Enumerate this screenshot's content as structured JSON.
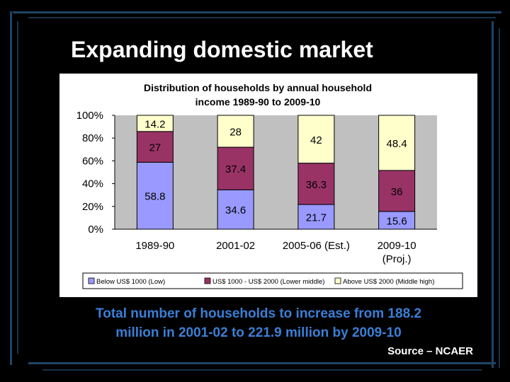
{
  "slide": {
    "title": "Expanding domestic market",
    "caption_line1": "Total number of households to increase from 188.2",
    "caption_line2": "million in 2001-02 to 221.9 million by 2009-10",
    "source": "Source – NCAER"
  },
  "colors": {
    "background": "#000000",
    "title": "#ffffff",
    "caption": "#3a7fd6",
    "deco_line": "#1f4566",
    "plot_area": "#c0c0c0",
    "low": "#9999ff",
    "lower_middle": "#993366",
    "middle_high": "#ffffcc"
  },
  "chart_data": {
    "type": "bar",
    "stacked": true,
    "percent_stacked": true,
    "title": "Distribution of households by annual household income 1989-90 to 2009-10",
    "title_lines": [
      "Distribution of households by annual household",
      "income 1989-90 to 2009-10"
    ],
    "categories": [
      "1989-90",
      "2001-02",
      "2005-06 (Est.)",
      "2009-10 (Proj.)"
    ],
    "category_lines": [
      [
        "1989-90"
      ],
      [
        "2001-02"
      ],
      [
        "2005-06 (Est.)"
      ],
      [
        "2009-10",
        "(Proj.)"
      ]
    ],
    "series": [
      {
        "name": "Below US$ 1000 (Low)",
        "values": [
          58.8,
          34.6,
          21.7,
          15.6
        ],
        "color": "#9999ff"
      },
      {
        "name": "US$ 1000 - US$ 2000 (Lower middle)",
        "values": [
          27,
          37.4,
          36.3,
          36
        ],
        "color": "#993366"
      },
      {
        "name": "Above US$ 2000 (Middle high)",
        "values": [
          14.2,
          28,
          42,
          48.4
        ],
        "color": "#ffffcc"
      }
    ],
    "y_ticks": [
      "100%",
      "80%",
      "60%",
      "40%",
      "20%",
      "0%"
    ],
    "ylim": [
      0,
      100
    ],
    "grid": false,
    "legend_position": "bottom"
  }
}
